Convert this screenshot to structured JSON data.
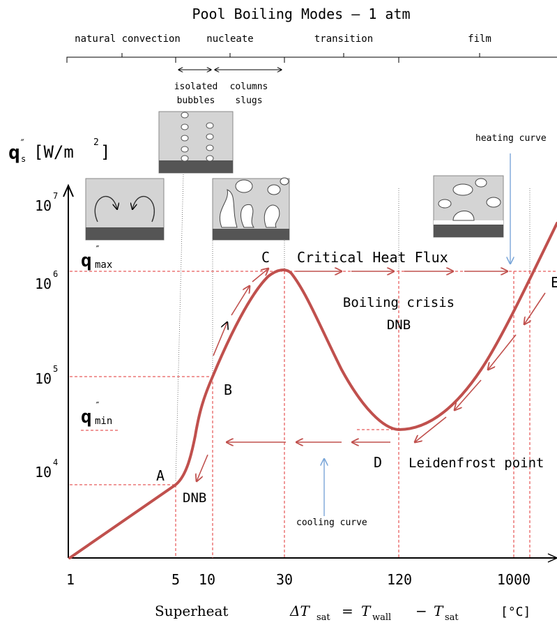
{
  "title": "Pool Boiling Modes – 1 atm",
  "regimes": [
    "natural convection",
    "nucleate",
    "transition",
    "film"
  ],
  "sub_regimes": {
    "left_top": "isolated",
    "left_bottom": "bubbles",
    "right_top": "columns",
    "right_bottom": "slugs"
  },
  "y_axis": {
    "label_q": "q",
    "label_prime": "″",
    "label_sub": "s",
    "label_units": "[W/m",
    "label_units_exp": "2",
    "label_units_close": "]",
    "ticks": [
      {
        "base": "10",
        "exp": "7"
      },
      {
        "base": "10",
        "exp": "6"
      },
      {
        "base": "10",
        "exp": "5"
      },
      {
        "base": "10",
        "exp": "4"
      }
    ]
  },
  "x_axis": {
    "ticks": [
      "1",
      "5",
      "10",
      "30",
      "120",
      "1000"
    ],
    "label_word": "Superheat",
    "label_delta": "ΔT",
    "label_sat": "sat",
    "label_eq": "=",
    "label_T1": "T",
    "label_wall": "wall",
    "label_minus": "−",
    "label_T2": "T",
    "label_sat2": "sat",
    "label_units": "[°C]"
  },
  "labels": {
    "qmax": "q",
    "qmax_prime": "″",
    "qmax_sub": "max",
    "qmin": "q",
    "qmin_prime": "″",
    "qmin_sub": "min",
    "point_A": "A",
    "point_B": "B",
    "point_C": "C",
    "point_D": "D",
    "point_E": "E",
    "critical_heat_flux": "Critical Heat Flux",
    "boiling_crisis": "Boiling crisis",
    "dnb_right": "DNB",
    "dnb_left": "DNB",
    "leidenfrost": "Leidenfrost point",
    "heating_curve": "heating curve",
    "cooling_curve": "cooling curve"
  },
  "colors": {
    "curve": "#c0504d",
    "dashed": "#e03030",
    "arrow_blue": "#7aa6d8",
    "axis": "#000000",
    "sketch_fill": "#d4d4d4",
    "sketch_base": "#555555"
  }
}
